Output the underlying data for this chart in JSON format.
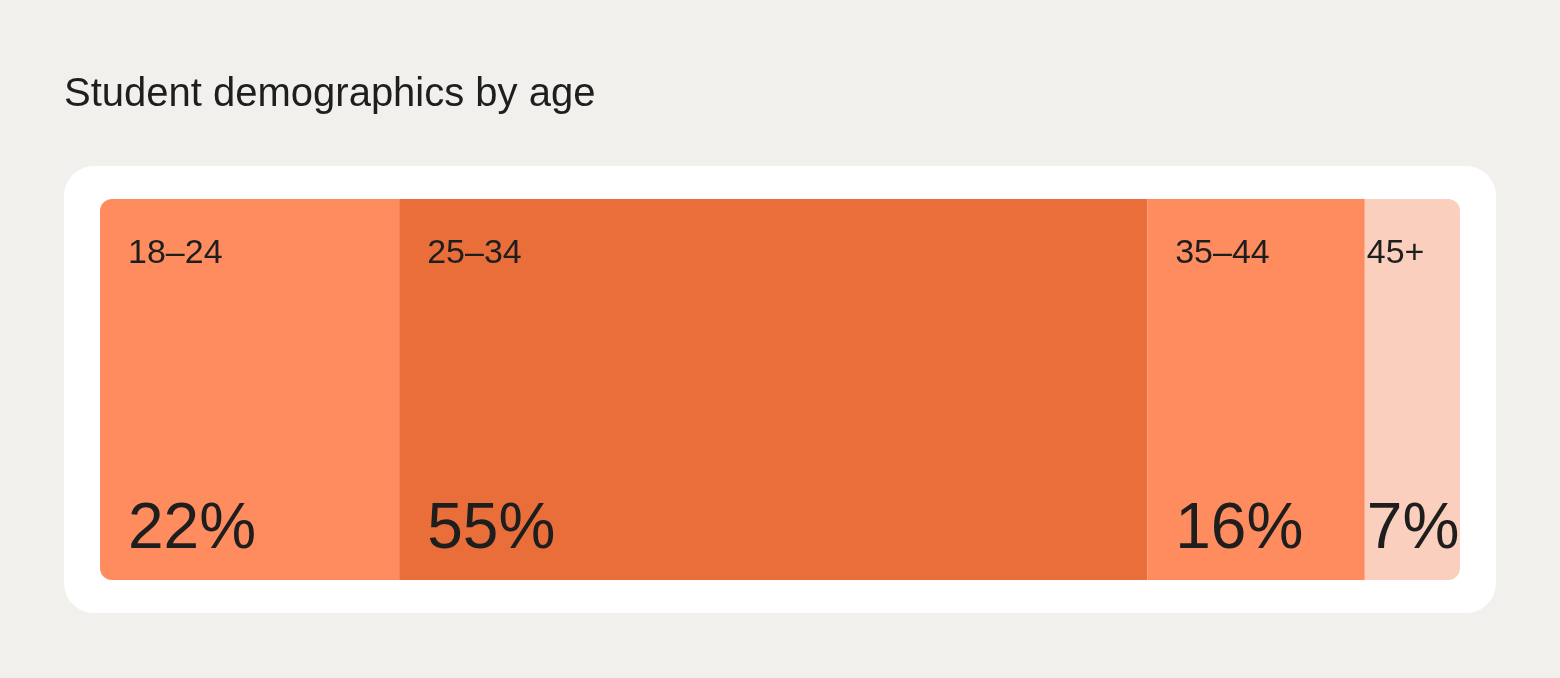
{
  "chart_data": {
    "type": "bar",
    "title": "Student demographics by age",
    "orientation": "horizontal",
    "stacked": true,
    "categories": [
      null
    ],
    "xlim": [
      0,
      100
    ],
    "tick_labels": false,
    "legend": false,
    "series": [
      {
        "name": "18–24",
        "color": "#ff8c5e",
        "values": [
          22
        ],
        "value_labels": [
          "22%"
        ]
      },
      {
        "name": "25–34",
        "color": "#e96e3a",
        "values": [
          55
        ],
        "value_labels": [
          "55%"
        ]
      },
      {
        "name": "35–44",
        "color": "#ff8c5e",
        "values": [
          16
        ],
        "value_labels": [
          "16%"
        ]
      },
      {
        "name": "45+",
        "color": "#fbcfbd",
        "values": [
          7
        ],
        "value_labels": [
          "7%"
        ]
      }
    ]
  }
}
